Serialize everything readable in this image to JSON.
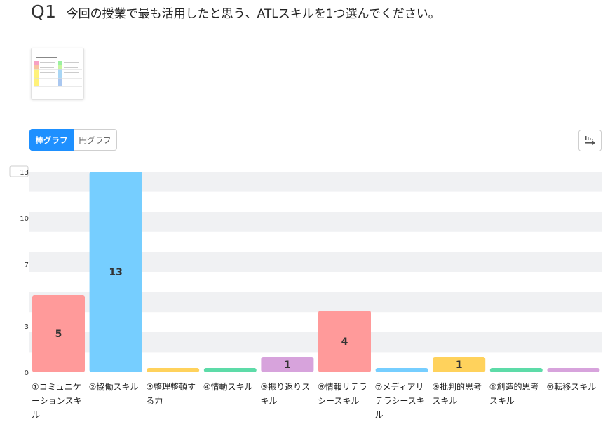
{
  "question": {
    "number": "Q1",
    "text": "今回の授業で最も活用したと思う、ATLスキルを1つ選んでください。"
  },
  "tabs": [
    {
      "label": "棒グラフ",
      "active": true
    },
    {
      "label": "円グラフ",
      "active": false
    }
  ],
  "icons": {
    "export": "sort-export-icon",
    "thumbnail": "table-thumbnail"
  },
  "chart_data": {
    "type": "bar",
    "categories": [
      "①コミュニケーションスキル",
      "②協働スキル",
      "③整理整頓する力",
      "④情動スキル",
      "⑤振り返りスキル",
      "⑥情報リテラシースキル",
      "⑦メディアリテラシースキル",
      "⑧批判的思考スキル",
      "⑨創造的思考スキル",
      "⑩転移スキル"
    ],
    "values": [
      5,
      13,
      0,
      0,
      1,
      4,
      0,
      1,
      0,
      0
    ],
    "colors": [
      "#ff9a9a",
      "#76ceff",
      "#ffd25c",
      "#5ddba8",
      "#d7a3dc",
      "#ff9a9a",
      "#76ceff",
      "#ffd25c",
      "#5ddba8",
      "#d7a3dc"
    ],
    "y_ticks": [
      0,
      3,
      7,
      10,
      13
    ],
    "ylim": [
      0,
      13
    ],
    "grid": true
  }
}
